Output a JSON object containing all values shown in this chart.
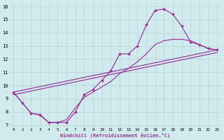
{
  "xlabel": "Windchill (Refroidissement éolien,°C)",
  "background_color": "#d0eaed",
  "line_color": "#993399",
  "grid_color": "#b8d8dc",
  "xlim": [
    -0.5,
    23.5
  ],
  "ylim": [
    6.8,
    16.3
  ],
  "yticks": [
    7,
    8,
    9,
    10,
    11,
    12,
    13,
    14,
    15,
    16
  ],
  "xticks": [
    0,
    1,
    2,
    3,
    4,
    5,
    6,
    7,
    8,
    9,
    10,
    11,
    12,
    13,
    14,
    15,
    16,
    17,
    18,
    19,
    20,
    21,
    22,
    23
  ],
  "line1_x": [
    0,
    1,
    2,
    3,
    4,
    5,
    6,
    7,
    8,
    9,
    10,
    11,
    12,
    13,
    14,
    15,
    16,
    17,
    18,
    19,
    20,
    21,
    22,
    23
  ],
  "line1_y": [
    9.5,
    8.7,
    7.9,
    7.8,
    7.2,
    7.2,
    7.2,
    8.0,
    9.3,
    9.7,
    10.4,
    11.1,
    12.4,
    12.4,
    13.0,
    14.6,
    15.7,
    15.8,
    15.4,
    14.5,
    13.3,
    13.1,
    12.8,
    12.7
  ],
  "line2_x": [
    0,
    1,
    2,
    3,
    4,
    5,
    6,
    7,
    8,
    9,
    10,
    11,
    12,
    13,
    14,
    15,
    16,
    17,
    18,
    19,
    20,
    21,
    22,
    23
  ],
  "line2_y": [
    9.5,
    8.7,
    7.9,
    7.75,
    7.2,
    7.2,
    7.4,
    8.3,
    9.1,
    9.5,
    9.9,
    10.3,
    10.9,
    11.3,
    11.8,
    12.4,
    13.1,
    13.4,
    13.5,
    13.5,
    13.4,
    13.1,
    12.8,
    12.7
  ],
  "line3_x": [
    0,
    23
  ],
  "line3_y": [
    9.5,
    12.7
  ],
  "line4_x": [
    0,
    23
  ],
  "line4_y": [
    9.3,
    12.5
  ]
}
